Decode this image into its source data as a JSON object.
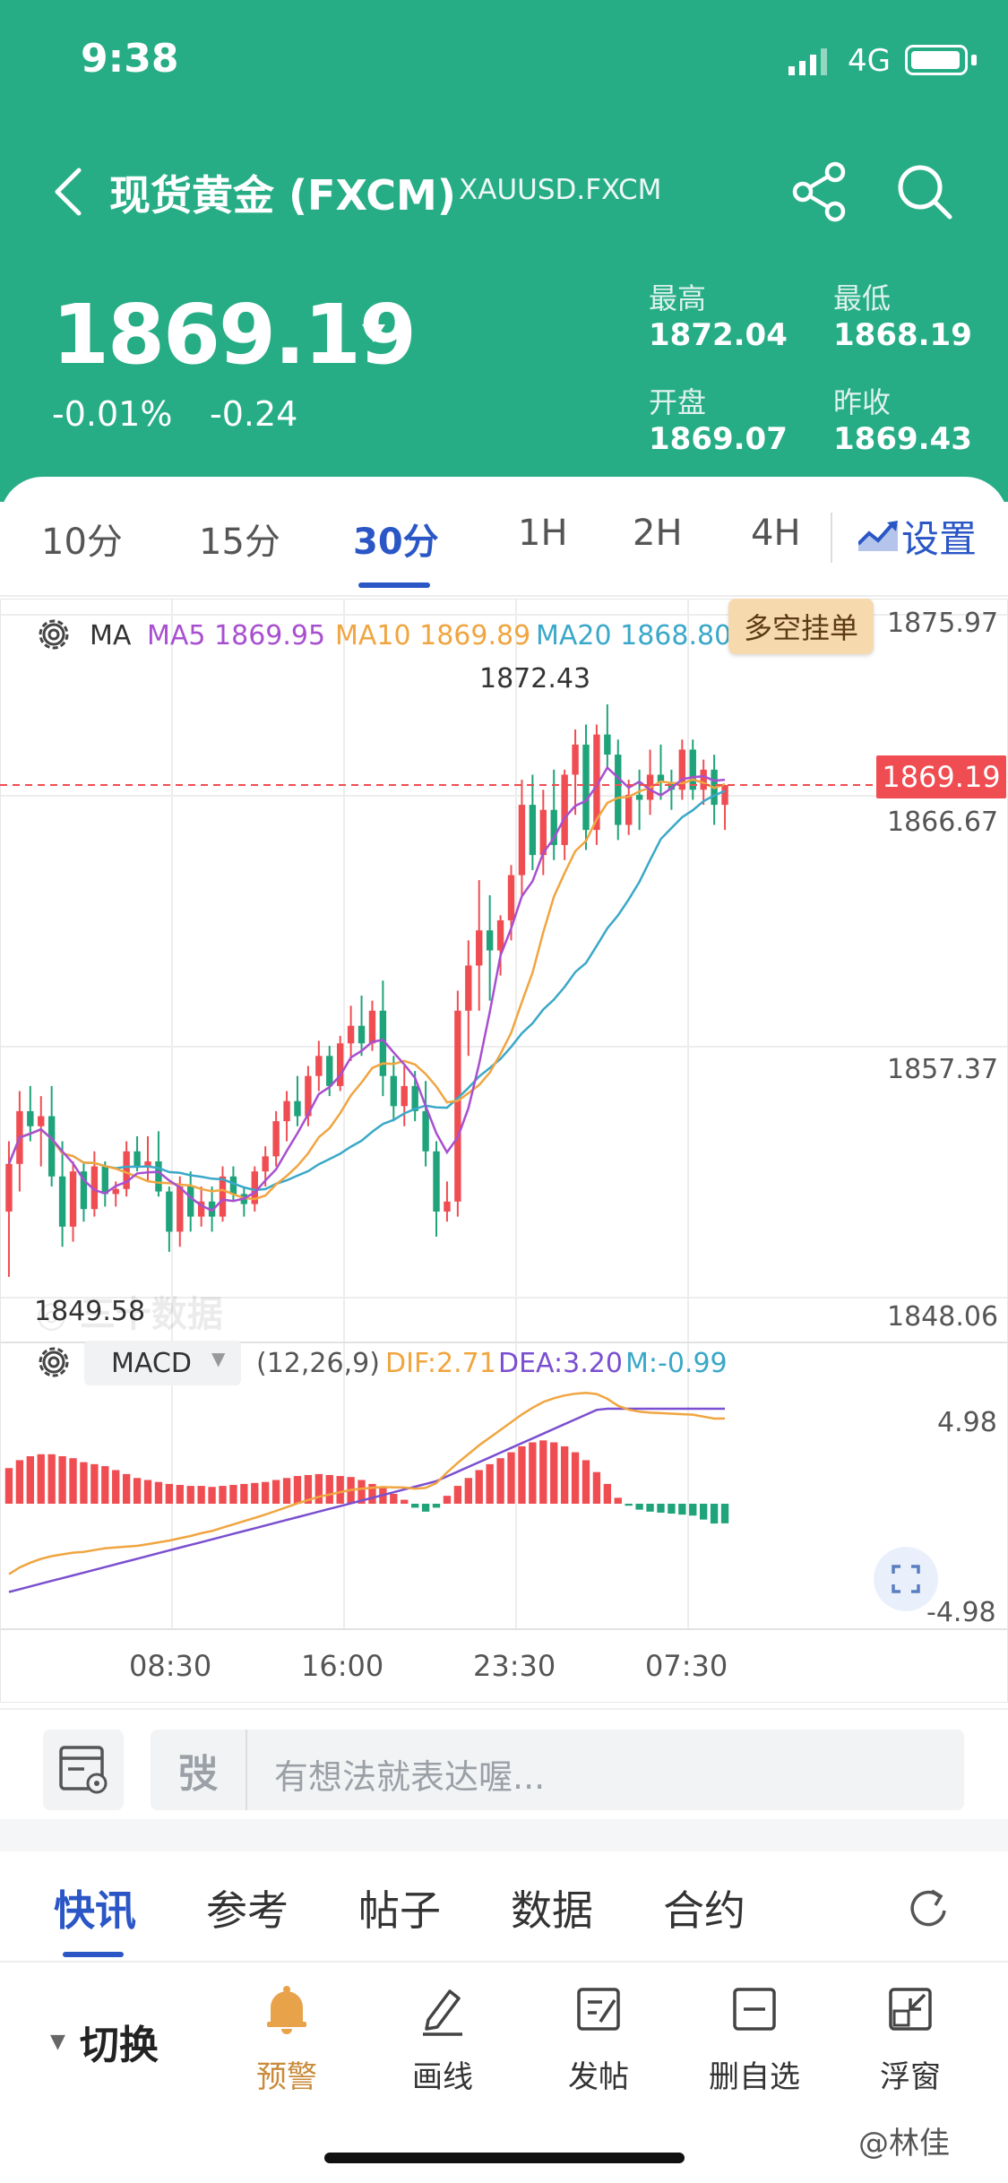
{
  "status_bar": {
    "time": "9:38",
    "network": "4G"
  },
  "nav": {
    "title": "现货黄金 (FXCM)",
    "symbol": "XAUUSD.FXCM"
  },
  "quote": {
    "price": "1869.19",
    "direction_icon": "arrow-down-icon",
    "change_pct": "-0.01%",
    "change_abs": "-0.24",
    "high_label": "最高",
    "high": "1872.04",
    "low_label": "最低",
    "low": "1868.19",
    "open_label": "开盘",
    "open": "1869.07",
    "prev_close_label": "昨收",
    "prev_close": "1869.43"
  },
  "interval_tabs": [
    {
      "label": "10分",
      "active": false
    },
    {
      "label": "15分",
      "active": false
    },
    {
      "label": "30分",
      "active": true
    },
    {
      "label": "1H",
      "active": false
    },
    {
      "label": "2H",
      "active": false
    },
    {
      "label": "4H",
      "active": false
    }
  ],
  "settings_label": "设置",
  "ma_legend": {
    "label": "MA",
    "ma5": "MA5 1869.95",
    "ma10": "MA10 1869.89",
    "ma20": "MA20 1868.80"
  },
  "order_button": "多空挂单",
  "price_axis": [
    "1875.97",
    "1866.67",
    "1857.37",
    "1848.06"
  ],
  "last_price_tag": "1869.19",
  "high_marker": "1872.43",
  "low_marker": "1849.58",
  "macd_legend": {
    "indicator": "MACD",
    "params": "(12,26,9)",
    "dif": "DIF:2.71",
    "dea": "DEA:3.20",
    "m": "M:-0.99"
  },
  "macd_axis": [
    "4.98",
    "-4.98"
  ],
  "time_axis": [
    "08:30",
    "16:00",
    "23:30",
    "07:30"
  ],
  "comment": {
    "placeholder": "有想法就表达喔..."
  },
  "news_tabs": [
    {
      "label": "快讯",
      "active": true
    },
    {
      "label": "参考",
      "active": false
    },
    {
      "label": "帖子",
      "active": false
    },
    {
      "label": "数据",
      "active": false
    },
    {
      "label": "合约",
      "active": false
    }
  ],
  "bottom_bar": {
    "switch": "切换",
    "alert": "预警",
    "draw": "画线",
    "post": "发帖",
    "remove_watch": "删自选",
    "float": "浮窗"
  },
  "weibo_mark": "@林佳",
  "colors": {
    "header": "#26ad85",
    "accent": "#2a56c6",
    "up": "#f04d52",
    "down": "#1fa37a",
    "ma5": "#a84fd0",
    "ma10": "#f0a540",
    "ma20": "#3aa8c8"
  },
  "chart_data": {
    "type": "candlestick",
    "y_range": [
      1848.06,
      1875.97
    ],
    "macd_range": [
      -4.98,
      4.98
    ],
    "candles": [
      [
        1852.2,
        1855.0,
        1849.6,
        1854.1
      ],
      [
        1854.1,
        1857.0,
        1853.0,
        1856.2
      ],
      [
        1856.2,
        1857.2,
        1855.0,
        1855.6
      ],
      [
        1855.6,
        1856.8,
        1854.0,
        1856.0
      ],
      [
        1856.0,
        1857.2,
        1853.2,
        1853.6
      ],
      [
        1853.6,
        1855.0,
        1850.8,
        1851.6
      ],
      [
        1851.6,
        1854.2,
        1851.0,
        1853.8
      ],
      [
        1853.8,
        1854.2,
        1851.8,
        1852.3
      ],
      [
        1852.3,
        1854.6,
        1852.0,
        1854.0
      ],
      [
        1854.0,
        1854.2,
        1852.4,
        1852.9
      ],
      [
        1852.9,
        1853.4,
        1852.4,
        1853.1
      ],
      [
        1853.1,
        1855.0,
        1852.8,
        1854.6
      ],
      [
        1854.6,
        1855.2,
        1853.8,
        1854.0
      ],
      [
        1854.0,
        1855.2,
        1853.4,
        1854.2
      ],
      [
        1854.2,
        1855.4,
        1852.8,
        1853.0
      ],
      [
        1853.0,
        1853.2,
        1850.6,
        1851.4
      ],
      [
        1851.4,
        1853.6,
        1850.8,
        1853.2
      ],
      [
        1853.2,
        1853.8,
        1851.4,
        1852.0
      ],
      [
        1852.0,
        1853.2,
        1851.6,
        1852.6
      ],
      [
        1852.6,
        1853.2,
        1851.4,
        1852.0
      ],
      [
        1852.0,
        1854.0,
        1851.8,
        1853.6
      ],
      [
        1853.6,
        1854.0,
        1852.6,
        1852.9
      ],
      [
        1852.9,
        1853.2,
        1852.0,
        1852.5
      ],
      [
        1852.5,
        1854.0,
        1852.2,
        1853.8
      ],
      [
        1853.8,
        1854.8,
        1853.2,
        1854.4
      ],
      [
        1854.4,
        1856.2,
        1854.0,
        1855.8
      ],
      [
        1855.8,
        1857.0,
        1855.0,
        1856.6
      ],
      [
        1856.6,
        1857.6,
        1855.6,
        1856.0
      ],
      [
        1856.0,
        1858.0,
        1855.6,
        1857.6
      ],
      [
        1857.6,
        1859.0,
        1857.0,
        1858.4
      ],
      [
        1858.4,
        1858.8,
        1856.8,
        1857.2
      ],
      [
        1857.2,
        1859.2,
        1857.0,
        1858.9
      ],
      [
        1858.9,
        1860.4,
        1858.2,
        1859.6
      ],
      [
        1859.6,
        1860.8,
        1858.4,
        1858.9
      ],
      [
        1858.9,
        1860.6,
        1858.6,
        1860.2
      ],
      [
        1860.2,
        1861.4,
        1856.8,
        1857.6
      ],
      [
        1857.6,
        1858.4,
        1855.8,
        1856.4
      ],
      [
        1856.4,
        1858.0,
        1855.6,
        1857.2
      ],
      [
        1857.2,
        1857.8,
        1855.8,
        1856.2
      ],
      [
        1856.2,
        1857.4,
        1854.0,
        1854.6
      ],
      [
        1854.6,
        1855.0,
        1851.2,
        1852.2
      ],
      [
        1852.2,
        1853.4,
        1851.8,
        1852.6
      ],
      [
        1852.6,
        1861.0,
        1852.0,
        1860.2
      ],
      [
        1860.2,
        1863.0,
        1858.4,
        1862.0
      ],
      [
        1862.0,
        1865.4,
        1860.2,
        1863.4
      ],
      [
        1863.4,
        1864.8,
        1860.6,
        1862.6
      ],
      [
        1862.6,
        1864.0,
        1861.6,
        1863.8
      ],
      [
        1863.8,
        1866.0,
        1863.0,
        1865.6
      ],
      [
        1865.6,
        1869.4,
        1864.8,
        1868.4
      ],
      [
        1868.4,
        1869.6,
        1865.8,
        1866.4
      ],
      [
        1866.4,
        1869.0,
        1865.6,
        1868.2
      ],
      [
        1868.2,
        1869.8,
        1866.2,
        1866.8
      ],
      [
        1866.8,
        1869.8,
        1866.2,
        1869.6
      ],
      [
        1869.6,
        1871.4,
        1868.0,
        1870.8
      ],
      [
        1870.8,
        1871.6,
        1866.6,
        1867.4
      ],
      [
        1867.4,
        1871.6,
        1866.8,
        1871.2
      ],
      [
        1871.2,
        1872.4,
        1869.8,
        1870.4
      ],
      [
        1870.4,
        1871.0,
        1867.0,
        1867.6
      ],
      [
        1867.6,
        1869.4,
        1867.2,
        1868.8
      ],
      [
        1868.8,
        1869.8,
        1867.4,
        1868.6
      ],
      [
        1868.6,
        1870.6,
        1868.0,
        1869.6
      ],
      [
        1869.6,
        1870.8,
        1868.6,
        1869.3
      ],
      [
        1869.3,
        1869.8,
        1868.2,
        1869.0
      ],
      [
        1869.0,
        1871.0,
        1868.6,
        1870.6
      ],
      [
        1870.6,
        1871.0,
        1868.6,
        1869.0
      ],
      [
        1869.0,
        1870.2,
        1868.4,
        1869.8
      ],
      [
        1869.8,
        1870.4,
        1867.6,
        1868.4
      ],
      [
        1868.4,
        1869.2,
        1867.4,
        1869.19
      ]
    ],
    "macd_histogram": [
      1.8,
      2.2,
      2.4,
      2.5,
      2.5,
      2.4,
      2.3,
      2.1,
      2.0,
      1.9,
      1.7,
      1.5,
      1.3,
      1.2,
      1.1,
      1.0,
      0.95,
      0.9,
      0.9,
      0.85,
      0.9,
      0.95,
      1.0,
      1.05,
      1.1,
      1.2,
      1.3,
      1.4,
      1.45,
      1.5,
      1.45,
      1.4,
      1.35,
      1.2,
      1.0,
      0.8,
      0.5,
      0.2,
      -0.2,
      -0.4,
      -0.2,
      0.4,
      0.9,
      1.3,
      1.7,
      2.0,
      2.3,
      2.6,
      2.9,
      3.1,
      3.2,
      3.1,
      2.9,
      2.6,
      2.2,
      1.6,
      1.0,
      0.3,
      -0.1,
      -0.3,
      -0.4,
      -0.45,
      -0.5,
      -0.55,
      -0.6,
      -0.8,
      -1.0,
      -0.99
    ]
  }
}
